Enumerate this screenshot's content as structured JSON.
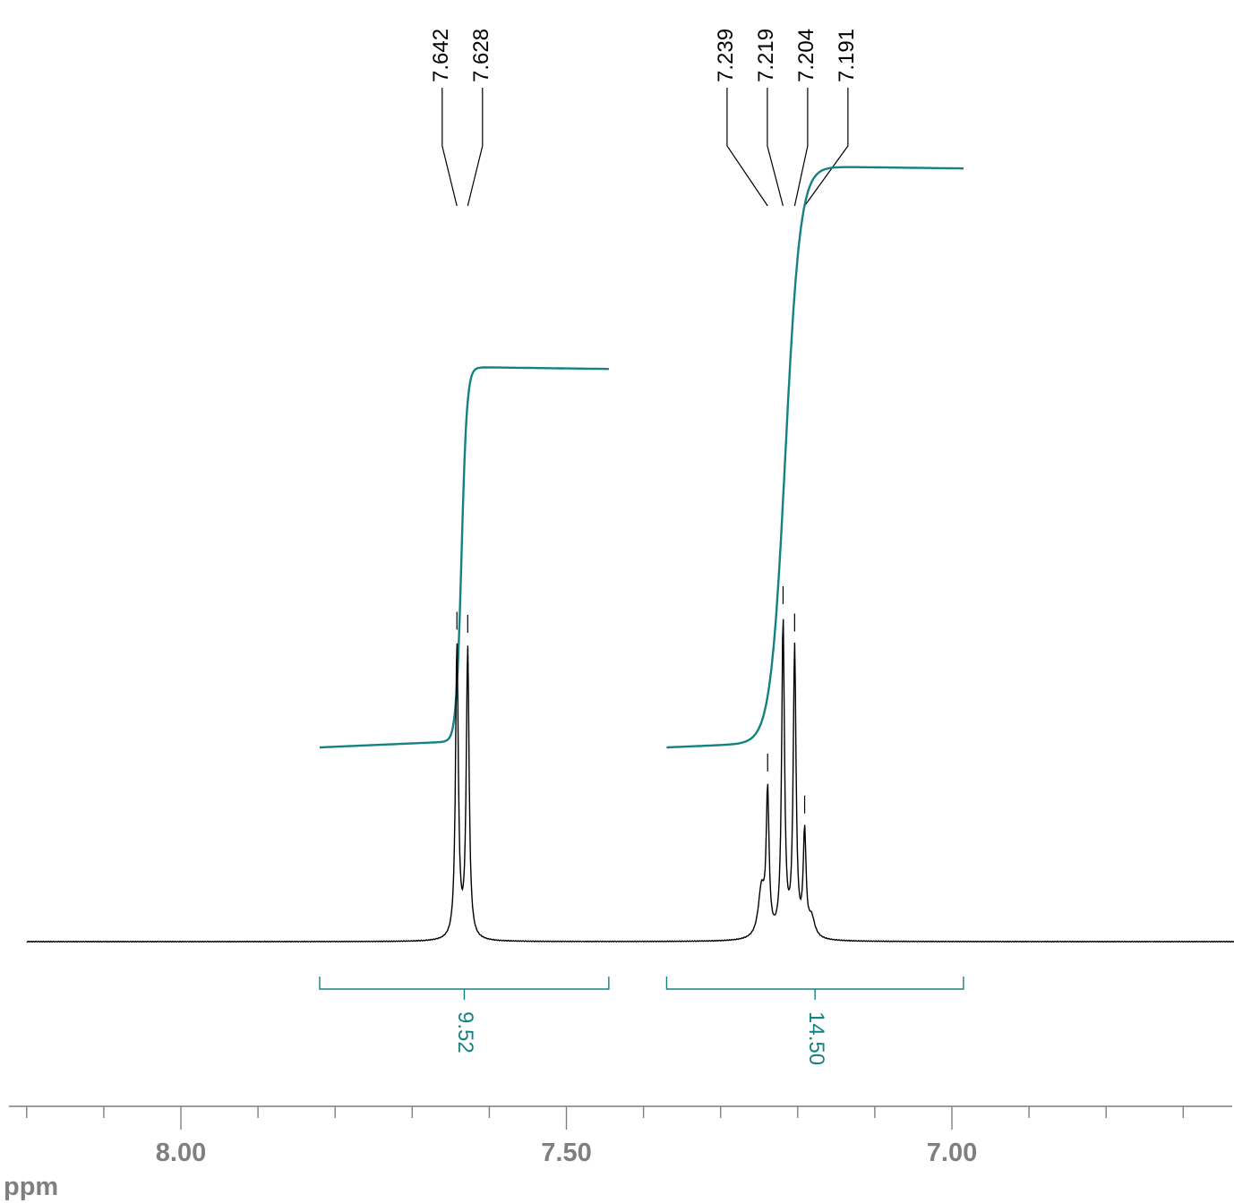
{
  "chart_data": {
    "type": "line",
    "title": "",
    "xlabel": "ppm",
    "ylabel": "",
    "x_reversed": true,
    "xlim": [
      8.2,
      6.63
    ],
    "major_ticks": [
      8.0,
      7.5,
      7.0
    ],
    "major_tick_labels": [
      "8.00",
      "7.50",
      "7.00"
    ],
    "minor_tick_step": 0.1,
    "grid": false,
    "legend": "none",
    "colors": {
      "spectrum": "#000000",
      "integral": "#138280",
      "axis": "#7f7f7f",
      "peak_label": "#000000"
    },
    "peaks": [
      {
        "ppm": 7.642,
        "label": "7.642",
        "height": 0.92
      },
      {
        "ppm": 7.628,
        "label": "7.628",
        "height": 0.91
      },
      {
        "ppm": 7.239,
        "label": "7.239",
        "height": 0.44
      },
      {
        "ppm": 7.219,
        "label": "7.219",
        "height": 0.99
      },
      {
        "ppm": 7.204,
        "label": "7.204",
        "height": 0.9
      },
      {
        "ppm": 7.191,
        "label": "7.191",
        "height": 0.32
      }
    ],
    "integrals": [
      {
        "from": 7.82,
        "to": 7.445,
        "value": 9.52,
        "label": "9.52"
      },
      {
        "from": 7.37,
        "to": 6.985,
        "value": 14.5,
        "label": "14.50"
      }
    ]
  }
}
